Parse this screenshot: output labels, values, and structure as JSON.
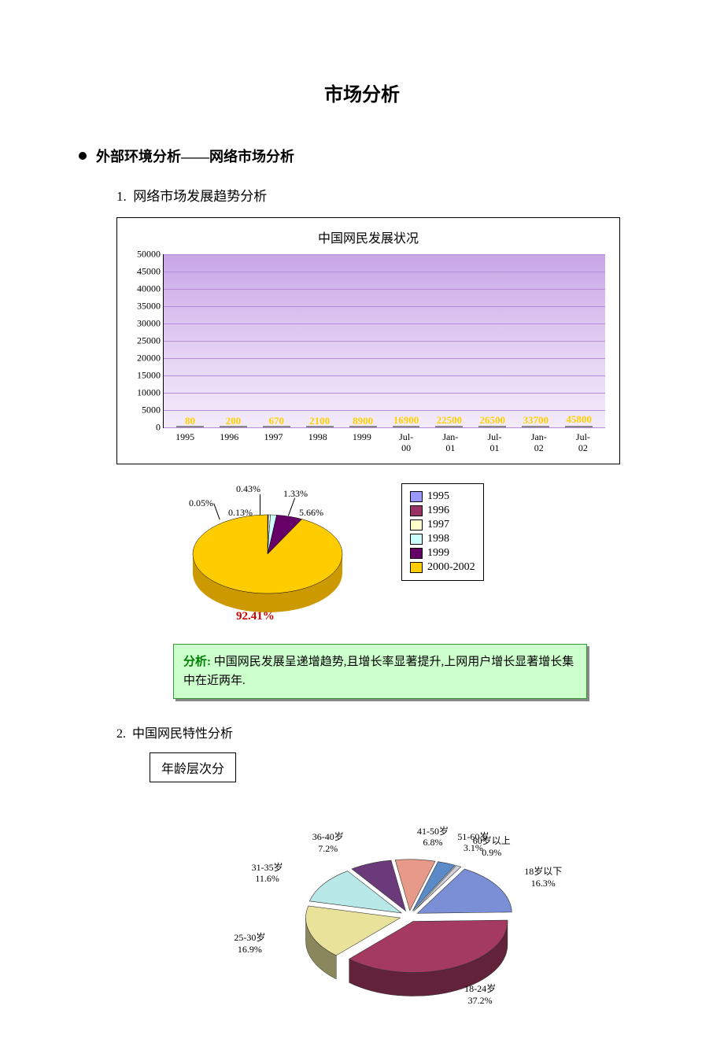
{
  "doc": {
    "title": "市场分析",
    "section_bullet": "外部环境分析——网络市场分析",
    "item1": "网络市场发展趋势分析",
    "item2_num": "2.",
    "item2": "中国网民特性分析",
    "age_box": "年龄层次分"
  },
  "bar_chart": {
    "type": "bar",
    "title": "中国网民发展状况",
    "categories": [
      "1995",
      "1996",
      "1997",
      "1998",
      "1999",
      "Jul-\n00",
      "Jan-\n01",
      "Jul-\n01",
      "Jan-\n02",
      "Jul-\n02"
    ],
    "values": [
      80,
      200,
      670,
      2100,
      8900,
      16900,
      22500,
      26500,
      33700,
      45800
    ],
    "value_labels": [
      "80",
      "200",
      "670",
      "2100",
      "8900",
      "16900",
      "22500",
      "26500",
      "33700",
      "45800"
    ],
    "ylim": [
      0,
      50000
    ],
    "ytick_step": 5000,
    "bar_color": "#ffff00",
    "bg_top": "#c9a6e8",
    "grid_color": "#b48bd8",
    "value_label_color": "#ffcc00"
  },
  "pie1": {
    "type": "pie",
    "slices": [
      {
        "label": "1995",
        "pct": 0.05,
        "color": "#9999ff"
      },
      {
        "label": "1996",
        "pct": 0.13,
        "color": "#993366"
      },
      {
        "label": "1997",
        "pct": 0.43,
        "color": "#ffffcc"
      },
      {
        "label": "1998",
        "pct": 1.33,
        "color": "#ccffff"
      },
      {
        "label": "1999",
        "pct": 5.66,
        "color": "#660066"
      },
      {
        "label": "2000-2002",
        "pct": 92.41,
        "color": "#ffcc00"
      }
    ],
    "big_label": "92.41%",
    "big_label_color": "#cc0000",
    "callouts": [
      "0.05%",
      "0.13%",
      "0.43%",
      "1.33%",
      "5.66%"
    ]
  },
  "analysis": {
    "label": "分析:",
    "text": "中国网民发展呈递增趋势,且增长率显著提升,上网用户增长显著增长集中在近两年.",
    "bg": "#ccffcc",
    "border": "#339933"
  },
  "pie2": {
    "type": "pie_3d_exploded",
    "slices": [
      {
        "label": "18岁以下",
        "pct": "16.3%",
        "val": 16.3,
        "color": "#7b8fd6"
      },
      {
        "label": "18-24岁",
        "pct": "37.2%",
        "val": 37.2,
        "color": "#a43a5f"
      },
      {
        "label": "25-30岁",
        "pct": "16.9%",
        "val": 16.9,
        "color": "#e8e29a"
      },
      {
        "label": "31-35岁",
        "pct": "11.6%",
        "val": 11.6,
        "color": "#b8e8e8"
      },
      {
        "label": "36-40岁",
        "pct": "7.2%",
        "val": 7.2,
        "color": "#6b3a7a"
      },
      {
        "label": "41-50岁",
        "pct": "6.8%",
        "val": 6.8,
        "color": "#e89a8a"
      },
      {
        "label": "51-60岁",
        "pct": "3.1%",
        "val": 3.1,
        "color": "#5a8ac8"
      },
      {
        "label": "60岁以上",
        "pct": "0.9%",
        "val": 0.9,
        "color": "#d0d0d8"
      }
    ]
  }
}
